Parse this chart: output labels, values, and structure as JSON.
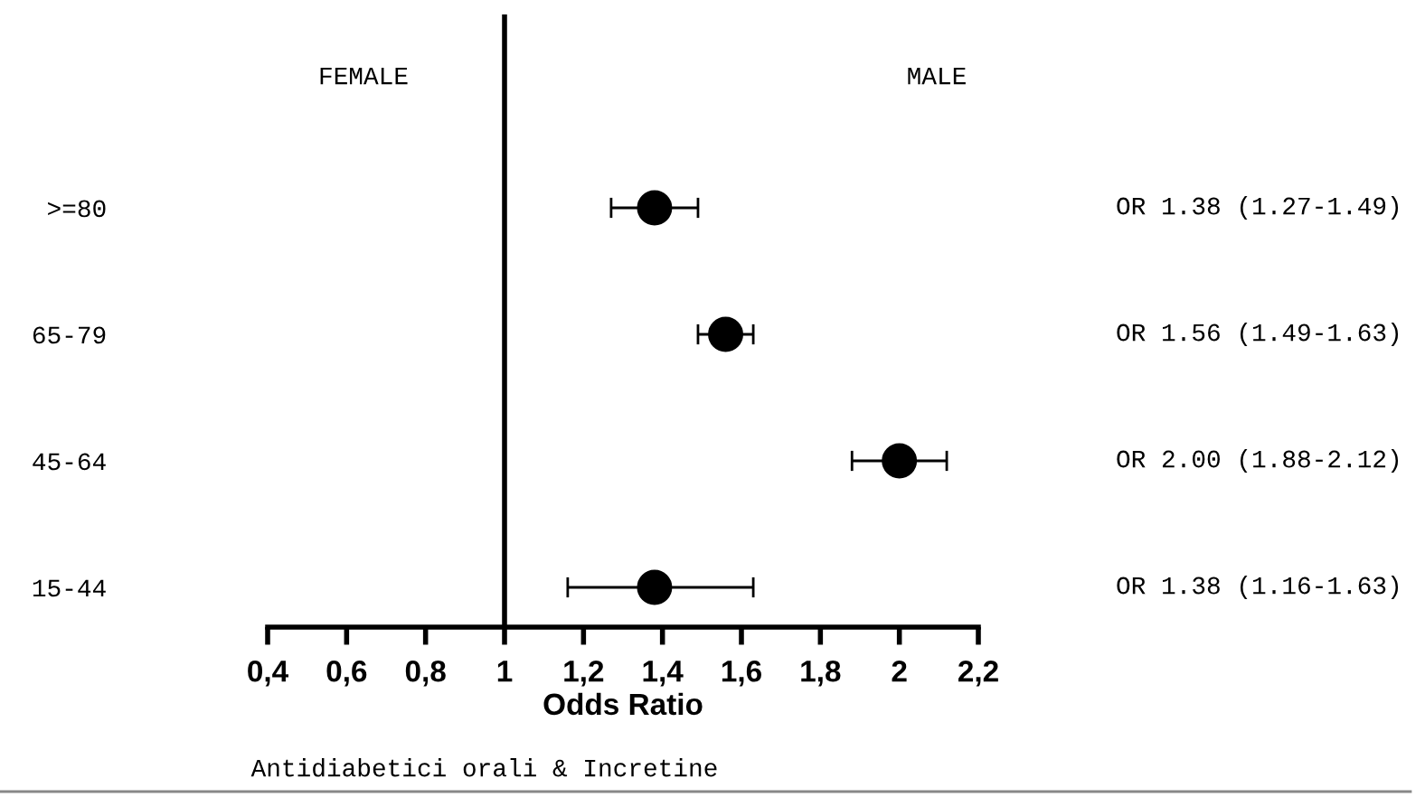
{
  "chart_data": {
    "type": "scatter",
    "orientation": "horizontal",
    "xlabel": "Odds Ratio",
    "categories": [
      ">=80",
      "65-79",
      "45-64",
      "15-44"
    ],
    "values": [
      1.38,
      1.56,
      2.0,
      1.38
    ],
    "errors": [
      [
        1.27,
        1.49
      ],
      [
        1.49,
        1.63
      ],
      [
        1.88,
        2.12
      ],
      [
        1.16,
        1.63
      ]
    ],
    "value_labels": [
      "OR 1.38 (1.27-1.49)",
      "OR 1.56 (1.49-1.63)",
      "OR 2.00 (1.88-2.12)",
      "OR 1.38 (1.16-1.63)"
    ],
    "color": "#000000",
    "marker": "circle",
    "xlim": [
      0.4,
      2.2
    ],
    "xticks": [
      {
        "value": 0.4,
        "label": "0,4"
      },
      {
        "value": 0.6,
        "label": "0,6"
      },
      {
        "value": 0.8,
        "label": "0,8"
      },
      {
        "value": 1,
        "label": "1"
      },
      {
        "value": 1.2,
        "label": "1,2"
      },
      {
        "value": 1.4,
        "label": "1,4"
      },
      {
        "value": 1.6,
        "label": "1,6"
      },
      {
        "value": 1.8,
        "label": "1,8"
      },
      {
        "value": 2,
        "label": "2"
      },
      {
        "value": 2.2,
        "label": "2,2"
      }
    ],
    "ref_lines": [
      {
        "axis": "x",
        "value": 1,
        "color": "#000000"
      }
    ],
    "annotations": [
      "FEMALE",
      "MALE",
      "Antidiabetici orali & Incretine"
    ]
  }
}
